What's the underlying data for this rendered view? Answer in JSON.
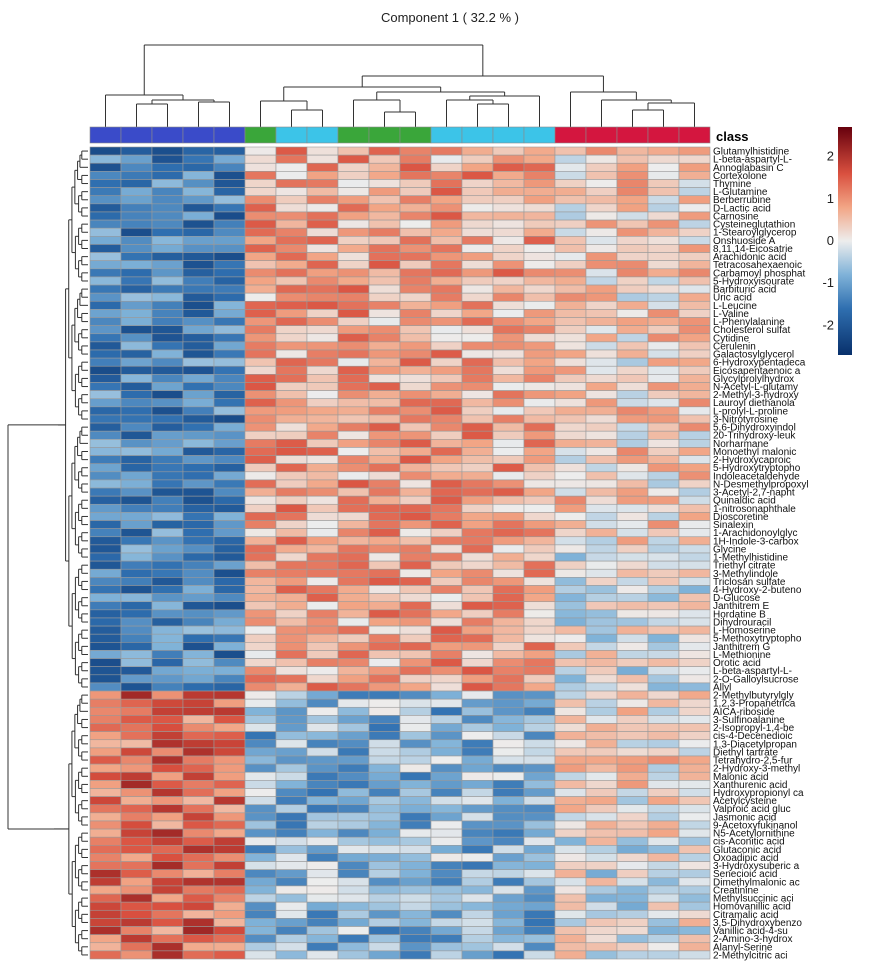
{
  "chart_data": {
    "type": "heatmap",
    "title": "Component 1 ( 32.2 % )",
    "class_label": "class",
    "samples": [
      {
        "group": "blue"
      },
      {
        "group": "blue"
      },
      {
        "group": "blue"
      },
      {
        "group": "blue"
      },
      {
        "group": "blue"
      },
      {
        "group": "green"
      },
      {
        "group": "cyan"
      },
      {
        "group": "cyan"
      },
      {
        "group": "green"
      },
      {
        "group": "green"
      },
      {
        "group": "green"
      },
      {
        "group": "cyan"
      },
      {
        "group": "cyan"
      },
      {
        "group": "cyan"
      },
      {
        "group": "cyan"
      },
      {
        "group": "red"
      },
      {
        "group": "red"
      },
      {
        "group": "red"
      },
      {
        "group": "red"
      },
      {
        "group": "red"
      }
    ],
    "group_colors": {
      "blue": "#3a4bc9",
      "green": "#3aa63a",
      "cyan": "#3cc4e8",
      "red": "#d4163f"
    },
    "rows": [
      "Glutamylhistidine",
      "L-beta-aspartyl-L-",
      "Annoglabasin C",
      "Cortexolone",
      "Thymine",
      "L-Glutamine",
      "Berberrubine",
      "D-Lactic acid",
      "Carnosine",
      "Cysteineglutathion",
      "1-Stearoylglycerop",
      "Onshuoside A",
      "8,11,14-Eicosatrie",
      "Arachidonic acid",
      "Tetracosahexaenoic",
      "Carbamoyl phosphat",
      "5-Hydroxyisourate",
      "Barbituric acid",
      "Uric acid",
      "L-Leucine",
      "L-Valine",
      "L-Phenylalanine",
      "Cholesterol sulfat",
      "Cytidine",
      "Cerulenin",
      "Galactosylglycerol",
      "6-Hydroxypentadeca",
      "Eicosapentaenoic a",
      "Glycylprolylhydrox",
      "N-Acetyl-L-glutamy",
      "2-Methyl-3-hydroxy",
      "Lauroyl diethanola",
      "L-prolyl-L-proline",
      "3-Nitrotyrosine",
      "5,6-Dihydroxyindol",
      "20-Trihydroxy-leuk",
      "Norharmane",
      "Monoethyl malonic",
      "2-Hydroxycaproic",
      "5-Hydroxytryptopho",
      "Indoleacetaldehyde",
      "N-Desmethylpropoxyl",
      "3-Acetyl-2,7-napht",
      "Quinaldic acid",
      "1-nitrosonaphthale",
      "Dioscoretine",
      "Sinalexin",
      "1-Arachidonoylglyc",
      "1H-Indole-3-carbox",
      "Glycine",
      "1-Methylhistidine",
      "Triethyl citrate",
      "3-Methylindole",
      "Triclosan sulfate",
      "4-Hydroxy-2-buteno",
      "D-Glucose",
      "Janthitrem E",
      "Hordatine B",
      "Dihydrouracil",
      "L-Homoserine",
      "5-Methoxytryptopho",
      "Janthitrem G",
      "L-Methionine",
      "Orotic acid",
      "L-beta-aspartyl-L-",
      "2-O-Galloylsucrose",
      "Allyl",
      "2-Methylbutyrylgly",
      "1,2,3-Propanetrica",
      "AICA-riboside",
      "3-Sulfinoalanine",
      "2-Isopropyl-1,4-be",
      "cis-4-Decenedioic",
      "1,3-Diacetylpropan",
      "Diethyl tartrate",
      "Tetrahydro-2,5-fur",
      "2-Hydroxy-3-methyl",
      "Malonic acid",
      "Xanthurenic acid",
      "Hydroxypropionyl ca",
      "Acetylcysteine",
      "Valproic acid gluc",
      "Jasmonic acid",
      "9-Acetoxyfukinanol",
      "N5-Acetylornithine",
      "cis-Aconitic acid",
      "Glutaconic acid",
      "Oxoadipic acid",
      "3-Hydroxysuberic a",
      "Senecioic acid",
      "Dimethylmalonic ac",
      "Creatinine",
      "Methylsuccinic aci",
      "Homovanillic acid",
      "Citramalic acid",
      "3,5-Dihydroxybenzo",
      "Vanillic acid-4-su",
      "2-Amino-3-hydrox",
      "Alanyl-Serine",
      "2-Methylcitric aci"
    ],
    "top_cluster_row_count": 67,
    "color_scale": {
      "min": -2.7,
      "max": 2.7,
      "stops": [
        {
          "value": -2.7,
          "color": "#08306b"
        },
        {
          "value": -1.6,
          "color": "#2f6fb0"
        },
        {
          "value": -0.8,
          "color": "#7fb2d8"
        },
        {
          "value": 0.0,
          "color": "#ededed"
        },
        {
          "value": 0.8,
          "color": "#f2a585"
        },
        {
          "value": 1.6,
          "color": "#d9503f"
        },
        {
          "value": 2.7,
          "color": "#67000d"
        }
      ],
      "ticks": [
        2,
        1,
        0,
        -1,
        -2
      ]
    },
    "column_dendrogram_order": [
      0,
      1,
      2,
      3,
      4,
      5,
      6,
      7,
      8,
      9,
      10,
      11,
      12,
      13,
      14,
      15,
      16,
      17,
      18,
      19
    ]
  }
}
